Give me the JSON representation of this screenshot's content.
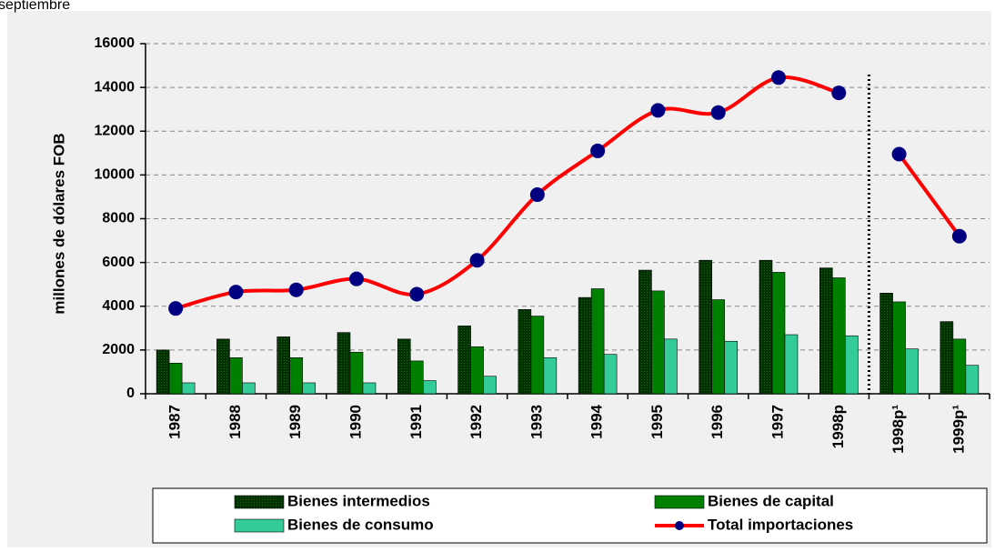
{
  "header_fragment": "septiembre",
  "chart_data": {
    "type": "bar",
    "y_label": "millones de dólares FOB",
    "categories": [
      "1987",
      "1988",
      "1989",
      "1990",
      "1991",
      "1992",
      "1993",
      "1994",
      "1995",
      "1996",
      "1997",
      "1998p",
      "1998p¹",
      "1999p¹"
    ],
    "series": [
      {
        "name": "Bienes intermedios",
        "color": "#003300",
        "values": [
          2000,
          2500,
          2600,
          2800,
          2500,
          3100,
          3850,
          4400,
          5650,
          6100,
          6100,
          5750,
          4600,
          3300
        ]
      },
      {
        "name": "Bienes de capital",
        "color": "#008000",
        "values": [
          1400,
          1650,
          1650,
          1900,
          1500,
          2150,
          3550,
          4800,
          4700,
          4300,
          5550,
          5300,
          4200,
          2500
        ]
      },
      {
        "name": "Bienes de consumo",
        "color": "#33cc99",
        "values": [
          500,
          500,
          500,
          500,
          600,
          800,
          1650,
          1800,
          2500,
          2400,
          2700,
          2650,
          2050,
          1300
        ]
      },
      {
        "name": "Total importaciones",
        "type": "line",
        "color": "#ff0000",
        "marker_color": "#000080",
        "values": [
          3900,
          4650,
          4750,
          5250,
          4550,
          6100,
          9100,
          11100,
          12950,
          12850,
          14450,
          13750,
          10950,
          7200
        ]
      }
    ],
    "ylim": [
      0,
      16000
    ],
    "yticks": [
      0,
      2000,
      4000,
      6000,
      8000,
      10000,
      12000,
      14000,
      16000
    ],
    "grid": true,
    "separator": {
      "after": "1998p",
      "style": "dotted"
    },
    "legend": "bottom"
  }
}
